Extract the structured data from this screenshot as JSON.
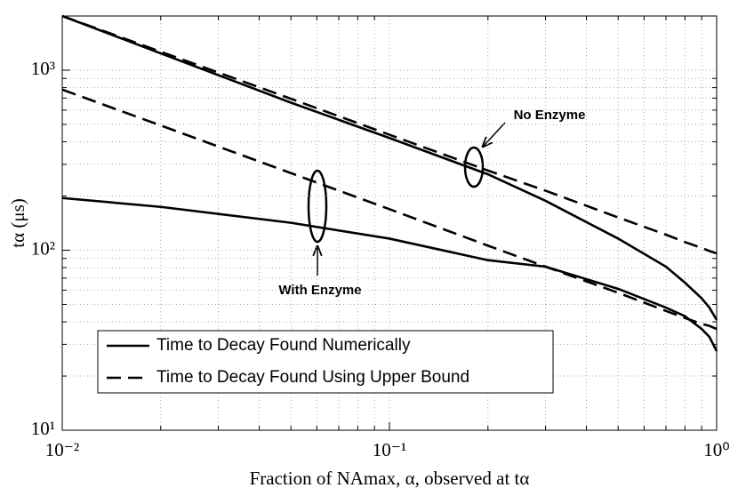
{
  "chart_data": {
    "type": "line",
    "x_label": "Fraction of NAmax, α, observed at tα",
    "y_label": "tα (μs)",
    "x": [
      0.01,
      0.02,
      0.05,
      0.1,
      0.2,
      0.3,
      0.5,
      0.7,
      0.8,
      0.9,
      0.95,
      1.0
    ],
    "series": [
      {
        "name": "Time to Decay Found Numerically",
        "color": "#000000",
        "dashed": false,
        "curves": [
          [
            2000,
            1240,
            660,
            420,
            264,
            188,
            116,
            81,
            66,
            54,
            48,
            41
          ],
          [
            195,
            174,
            142,
            116,
            88,
            81,
            61,
            48,
            43,
            36.5,
            33,
            27.5
          ]
        ]
      },
      {
        "name": "Time to Decay Found Using Upper Bound",
        "color": "#000000",
        "dashed": true,
        "curves": [
          [
            2000,
            1266,
            694,
            438,
            277,
            214,
            152,
            122,
            111,
            103,
            99,
            96
          ],
          [
            780,
            493,
            268,
            169,
            106,
            81,
            58,
            46,
            42,
            39,
            38,
            36.5
          ]
        ]
      }
    ],
    "annotations": [
      "No Enzyme",
      "With Enzyme"
    ],
    "xlim": [
      0.01,
      1
    ],
    "ylim": [
      10,
      2000
    ],
    "log_x": true,
    "log_y": true,
    "xticks": [
      {
        "value": 0.01,
        "label": "10⁻²"
      },
      {
        "value": 0.1,
        "label": "10⁻¹"
      },
      {
        "value": 1,
        "label": "10⁰"
      }
    ],
    "yticks": [
      {
        "value": 10,
        "label": "10¹"
      },
      {
        "value": 100,
        "label": "10²"
      },
      {
        "value": 1000,
        "label": "10³"
      }
    ],
    "grid": true,
    "legend": "lower left"
  }
}
